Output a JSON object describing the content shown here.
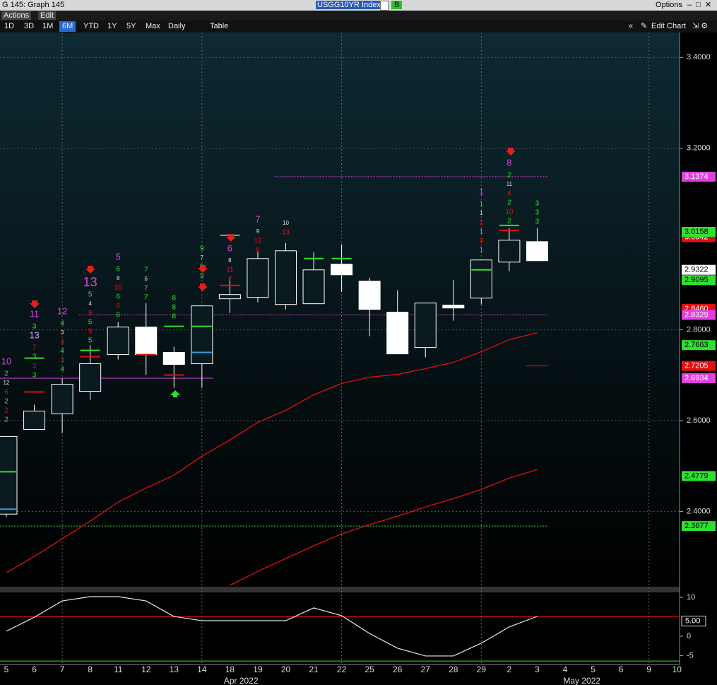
{
  "toolbar": {
    "window_title": "G 145: Graph 145",
    "security": "USGG10YR Index",
    "source": "B",
    "options": "Options",
    "menus": [
      "Actions",
      "Edit"
    ],
    "buttons": [
      "1D",
      "3D",
      "1M",
      "6M",
      "YTD",
      "1Y",
      "5Y",
      "Max",
      "Daily",
      "Table"
    ],
    "selected_button": "6M",
    "edit_chart": "Edit Chart"
  },
  "chart_data": {
    "type": "candlestick",
    "categories": [
      "5",
      "6",
      "7",
      "8",
      "11",
      "12",
      "13",
      "14",
      "18",
      "19",
      "20",
      "21",
      "22",
      "25",
      "26",
      "27",
      "28",
      "29",
      "2",
      "3",
      "4",
      "5",
      "6",
      "9",
      "10"
    ],
    "x_group_labels": [
      "Apr 2022",
      "May 2022"
    ],
    "open": [
      2.394,
      2.5806,
      2.6149,
      2.6646,
      2.7455,
      2.8061,
      2.7502,
      2.7253,
      2.8684,
      2.8715,
      2.8559,
      2.8575,
      2.9446,
      2.9072,
      2.8388,
      2.761,
      2.8544,
      2.8699,
      2.9492,
      2.9943,
      null,
      null,
      null,
      null,
      null
    ],
    "high": [
      2.5651,
      2.6351,
      2.6926,
      2.7657,
      2.817,
      2.859,
      2.7626,
      2.8528,
      2.915,
      2.9726,
      2.9912,
      2.971,
      2.9881,
      2.915,
      2.887,
      2.859,
      2.9103,
      2.9539,
      3.0239,
      3.0239,
      null,
      null,
      null,
      null,
      null
    ],
    "low": [
      2.3878,
      2.5806,
      2.5729,
      2.646,
      2.7346,
      2.7004,
      2.6724,
      2.6724,
      2.8372,
      2.8606,
      2.845,
      2.8575,
      2.8839,
      2.7859,
      2.747,
      2.7393,
      2.8201,
      2.8559,
      2.929,
      2.9523,
      null,
      null,
      null,
      null,
      null
    ],
    "close": [
      2.5651,
      2.6211,
      2.6802,
      2.7253,
      2.8061,
      2.7455,
      2.7237,
      2.8528,
      2.8777,
      2.957,
      2.9741,
      2.9321,
      2.9212,
      2.845,
      2.747,
      2.859,
      2.8481,
      2.9539,
      2.9974,
      2.9523,
      null,
      null,
      null,
      null,
      null
    ],
    "up_color": "#0a1a1f",
    "down_color": "#ffffff",
    "candle_stroke": "#ffffff",
    "series": [
      {
        "color": "#e01010",
        "values": [
          2.2649,
          2.3007,
          2.3396,
          2.3785,
          2.4205,
          2.4516,
          2.4796,
          2.5216,
          2.5573,
          2.5962,
          2.6226,
          2.6568,
          2.6817,
          2.6957,
          2.7019,
          2.7144,
          2.7284,
          2.7517,
          2.7782,
          2.7937,
          null,
          null,
          null,
          null,
          null
        ]
      },
      {
        "color": "#e01010",
        "values": [
          null,
          null,
          null,
          null,
          null,
          null,
          null,
          null,
          2.2369,
          2.268,
          2.2961,
          2.3241,
          2.3505,
          2.3707,
          2.3894,
          2.4096,
          2.4282,
          2.4485,
          2.4733,
          2.492,
          null,
          null,
          null,
          null,
          null
        ]
      }
    ],
    "td_levels": [
      {
        "color": "#30e030",
        "values": [
          2.4873,
          2.7377,
          null,
          2.7548,
          null,
          null,
          2.8077,
          2.8077,
          3.0083,
          null,
          null,
          2.957,
          2.957,
          null,
          null,
          null,
          null,
          2.9321,
          3.0301,
          null,
          null,
          null,
          null,
          null,
          null
        ]
      },
      {
        "color": "#e01010",
        "values": [
          null,
          2.6631,
          null,
          2.7408,
          null,
          2.7455,
          2.7004,
          null,
          2.8979,
          null,
          null,
          null,
          null,
          null,
          null,
          null,
          null,
          null,
          3.0192,
          null,
          null,
          null,
          null,
          null,
          null
        ]
      },
      {
        "color": "#3a9ae0",
        "values": [
          2.4049,
          null,
          null,
          null,
          null,
          null,
          null,
          2.7502,
          null,
          null,
          null,
          null,
          null,
          null,
          null,
          null,
          null,
          null,
          null,
          null,
          null,
          null,
          null,
          null,
          null
        ]
      }
    ],
    "ref_lines": [
      {
        "value": 3.1374,
        "color": "#e040e0",
        "dashed": true,
        "start": 10,
        "end": 19
      },
      {
        "value": 2.8329,
        "color": "#e040e0",
        "dashed": true,
        "start": 3,
        "end": 19
      },
      {
        "value": 2.3677,
        "color": "#30e030",
        "dashed": true,
        "start": 0,
        "end": 19
      },
      {
        "value": 2.6934,
        "color": "#e040e0",
        "dashed": false,
        "start": 0,
        "end": 7
      },
      {
        "value": 2.7205,
        "color": "#e01010",
        "dashed": false,
        "start": 19,
        "end": 19
      }
    ],
    "price_tags": [
      {
        "value": 3.1374,
        "label": "3.1374",
        "color": "#e040e0"
      },
      {
        "value": 3.0042,
        "label": "3.0042",
        "color": "#e01010"
      },
      {
        "value": 3.0158,
        "label": "3.0158",
        "color": "#30e030"
      },
      {
        "value": 2.9322,
        "label": "2.9322",
        "color": "#ffffff"
      },
      {
        "value": 2.9095,
        "label": "2.9095",
        "color": "#30e030"
      },
      {
        "value": 2.846,
        "label": "2.8460",
        "color": "#e01010"
      },
      {
        "value": 2.8329,
        "label": "2.8329",
        "color": "#e040e0"
      },
      {
        "value": 2.7663,
        "label": "2.7663",
        "color": "#30e030"
      },
      {
        "value": 2.7205,
        "label": "2.7205",
        "color": "#e01010"
      },
      {
        "value": 2.6934,
        "label": "2.6934",
        "color": "#e040e0"
      },
      {
        "value": 2.4779,
        "label": "2.4779",
        "color": "#30e030"
      },
      {
        "value": 2.3677,
        "label": "2.3677",
        "color": "#30e030"
      }
    ],
    "annotations": [
      {
        "category": 0,
        "labels": [
          {
            "text": "10",
            "color": "#e040e0"
          },
          {
            "text": "2",
            "color": "#30e030"
          },
          {
            "text": "12",
            "color": "#e0e0e0"
          },
          {
            "text": "6",
            "color": "#e01010"
          },
          {
            "text": "2",
            "color": "#30e030"
          },
          {
            "text": "2",
            "color": "#e01010"
          },
          {
            "text": "2",
            "color": "#30e030"
          }
        ]
      },
      {
        "category": 1,
        "labels": [
          {
            "text": "11",
            "color": "#e040e0"
          },
          {
            "text": "3",
            "color": "#30e030"
          },
          {
            "text": "13",
            "color": "#c8a8ff"
          },
          {
            "text": "7",
            "color": "#e01010"
          },
          {
            "text": "3",
            "color": "#30e030"
          },
          {
            "text": "3",
            "color": "#e01010"
          },
          {
            "text": "3",
            "color": "#30e030"
          }
        ]
      },
      {
        "category": 2,
        "labels": [
          {
            "text": "12",
            "color": "#e040e0"
          },
          {
            "text": "4",
            "color": "#30e030"
          },
          {
            "text": "3",
            "color": "#e0e0e0"
          },
          {
            "text": "4",
            "color": "#e01010"
          },
          {
            "text": "4",
            "color": "#30e030"
          },
          {
            "text": "3",
            "color": "#e01010"
          },
          {
            "text": "4",
            "color": "#30e030"
          }
        ]
      },
      {
        "category": 3,
        "labels": [
          {
            "text": "13",
            "color": "#e040e0"
          },
          {
            "text": "5",
            "color": "#30e030"
          },
          {
            "text": "4",
            "color": "#e0e0e0"
          },
          {
            "text": "9",
            "color": "#e01010"
          },
          {
            "text": "5",
            "color": "#30e030"
          },
          {
            "text": "5",
            "color": "#e01010"
          },
          {
            "text": "5",
            "color": "#30e030"
          }
        ]
      },
      {
        "category": 4,
        "labels": [
          {
            "text": "5",
            "color": "#e040e0"
          },
          {
            "text": "6",
            "color": "#30e030"
          },
          {
            "text": "8",
            "color": "#e0e0e0"
          },
          {
            "text": "10",
            "color": "#e01010"
          },
          {
            "text": "6",
            "color": "#30e030"
          },
          {
            "text": "6",
            "color": "#e01010"
          },
          {
            "text": "6",
            "color": "#30e030"
          }
        ]
      },
      {
        "category": 5,
        "labels": [
          {
            "text": "7",
            "color": "#30e030"
          },
          {
            "text": "6",
            "color": "#e0e0e0"
          },
          {
            "text": "7",
            "color": "#30e030"
          },
          {
            "text": "7",
            "color": "#30e030"
          }
        ]
      },
      {
        "category": 6,
        "labels": [
          {
            "text": "8",
            "color": "#30e030"
          },
          {
            "text": "8",
            "color": "#30e030"
          },
          {
            "text": "8",
            "color": "#30e030"
          }
        ]
      },
      {
        "category": 7,
        "labels": [
          {
            "text": "9",
            "color": "#30e030"
          },
          {
            "text": "7",
            "color": "#e0e0e0"
          },
          {
            "text": "9",
            "color": "#30e030"
          },
          {
            "text": "9",
            "color": "#30e030"
          }
        ]
      },
      {
        "category": 8,
        "labels": [
          {
            "text": "6",
            "color": "#e040e0"
          },
          {
            "text": "8",
            "color": "#e0e0e0"
          },
          {
            "text": "11",
            "color": "#e01010"
          },
          {
            "text": "7",
            "color": "#e01010"
          }
        ]
      },
      {
        "category": 9,
        "labels": [
          {
            "text": "7",
            "color": "#e040e0"
          },
          {
            "text": "9",
            "color": "#e0e0e0"
          },
          {
            "text": "12",
            "color": "#e01010"
          },
          {
            "text": "8",
            "color": "#e01010"
          }
        ]
      },
      {
        "category": 10,
        "labels": [
          {
            "text": "10",
            "color": "#e0e0e0"
          },
          {
            "text": "13",
            "color": "#e01010"
          }
        ]
      },
      {
        "category": 17,
        "labels": [
          {
            "text": "1",
            "color": "#e040e0"
          },
          {
            "text": "1",
            "color": "#30e030"
          },
          {
            "text": "1",
            "color": "#e0e0e0"
          },
          {
            "text": "2",
            "color": "#e01010"
          },
          {
            "text": "1",
            "color": "#30e030"
          },
          {
            "text": "9",
            "color": "#e01010"
          },
          {
            "text": "1",
            "color": "#30e030"
          }
        ]
      },
      {
        "category": 18,
        "labels": [
          {
            "text": "8",
            "color": "#e040e0"
          },
          {
            "text": "2",
            "color": "#30e030"
          },
          {
            "text": "11",
            "color": "#e0e0e0"
          },
          {
            "text": "4",
            "color": "#e01010"
          },
          {
            "text": "2",
            "color": "#30e030"
          },
          {
            "text": "10",
            "color": "#e01010"
          },
          {
            "text": "2",
            "color": "#30e030"
          }
        ]
      },
      {
        "category": 19,
        "labels": [
          {
            "text": "3",
            "color": "#30e030"
          },
          {
            "text": "3",
            "color": "#30e030"
          },
          {
            "text": "3",
            "color": "#30e030"
          }
        ]
      }
    ],
    "ylim": [
      2.234,
      3.455
    ],
    "yticks": [
      {
        "value": 2.4,
        "label": "2.4000"
      },
      {
        "value": 2.6,
        "label": "2.6000"
      },
      {
        "value": 2.8,
        "label": "2.8000"
      },
      {
        "value": 3.2,
        "label": "3.2000"
      },
      {
        "value": 3.4,
        "label": "3.4000"
      }
    ],
    "grid": true,
    "oscillator": {
      "color": "#e8e8e8",
      "values": [
        1.3,
        4.9,
        9.1,
        10.2,
        10.2,
        9.1,
        5.1,
        4.0,
        4.0,
        4.0,
        4.0,
        7.3,
        5.3,
        0.7,
        -3.1,
        -5.1,
        -5.1,
        -1.8,
        2.4,
        5.1,
        null,
        null,
        null,
        null,
        null
      ],
      "ylim": [
        -7.3,
        11.3
      ],
      "yticks": [
        10,
        0,
        -5
      ],
      "ref_lines": [
        {
          "value": 5,
          "label": "5.00",
          "color": "#e01010"
        },
        {
          "value": -6.4,
          "color": "#30e030"
        }
      ]
    }
  }
}
